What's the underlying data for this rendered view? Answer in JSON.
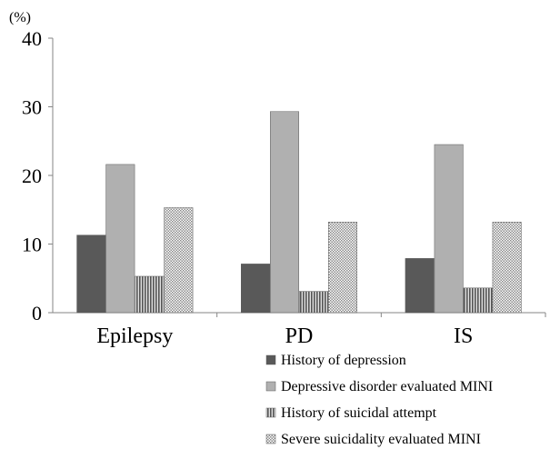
{
  "chart_data": {
    "type": "bar",
    "ylabel": "(%)",
    "ylim": [
      0,
      40
    ],
    "yticks": [
      0,
      10,
      20,
      30,
      40
    ],
    "categories": [
      "Epilepsy",
      "PD",
      "IS"
    ],
    "series": [
      {
        "name": "History of depression",
        "values": [
          11.3,
          7.1,
          7.9
        ],
        "color": "#595959",
        "pattern": "solid"
      },
      {
        "name": "Depressive disorder evaluated MINI",
        "values": [
          21.6,
          29.3,
          24.5
        ],
        "color": "#b0b0b0",
        "pattern": "solid"
      },
      {
        "name": "History of suicidal attempt",
        "values": [
          5.3,
          3.1,
          3.6
        ],
        "color": "#6e6e6e",
        "pattern": "vertical-stripes"
      },
      {
        "name": "Severe suicidality evaluated MINI",
        "values": [
          15.3,
          13.2,
          13.2
        ],
        "color": "#c8c8c8",
        "pattern": "dots"
      }
    ],
    "legend_position": "bottom-right",
    "grid": false
  }
}
